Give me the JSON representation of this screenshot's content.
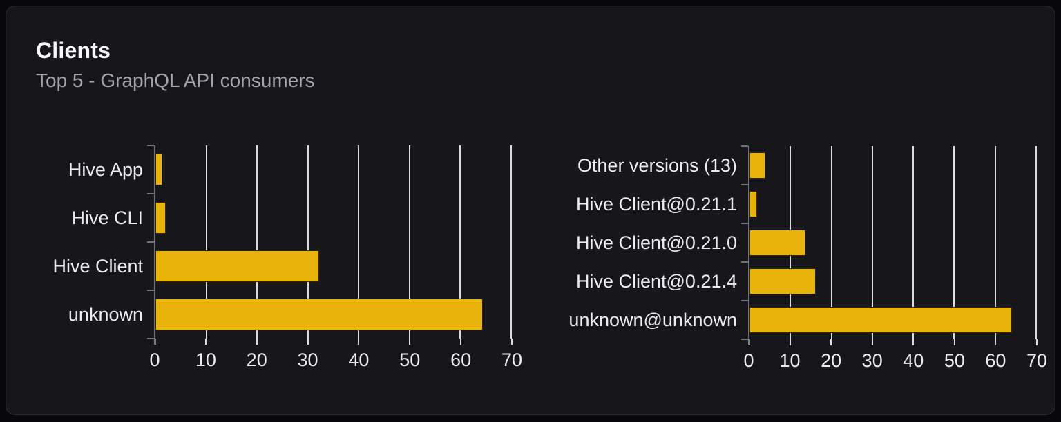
{
  "card": {
    "title": "Clients",
    "subtitle": "Top 5 - GraphQL API consumers"
  },
  "colors": {
    "page_bg": "#08080a",
    "card_bg": "#17171b",
    "card_border": "#2c2c33",
    "bar_fill": "#e8b30b",
    "bar_border": "#2a2310",
    "gridline": "#d9dde3",
    "axis": "#71717a",
    "label_text": "#ececee",
    "title_text": "#fafafa",
    "subtitle_text": "#a3a3ad"
  },
  "chart_data": [
    {
      "type": "bar",
      "orientation": "horizontal",
      "title": "",
      "categories": [
        "Hive App",
        "Hive CLI",
        "Hive Client",
        "unknown"
      ],
      "values": [
        1.4,
        2.0,
        32.2,
        64.4
      ],
      "xlabel": "",
      "ylabel": "",
      "xlim": [
        0,
        70
      ],
      "xticks": [
        0,
        10,
        20,
        30,
        40,
        50,
        60,
        70
      ],
      "grid": true,
      "legend": false
    },
    {
      "type": "bar",
      "orientation": "horizontal",
      "title": "",
      "categories": [
        "Other versions (13)",
        "Hive Client@0.21.1",
        "Hive Client@0.21.0",
        "Hive Client@0.21.4",
        "unknown@unknown"
      ],
      "values": [
        3.8,
        1.8,
        13.7,
        16.2,
        64.1
      ],
      "xlabel": "",
      "ylabel": "",
      "xlim": [
        0,
        70
      ],
      "xticks": [
        0,
        10,
        20,
        30,
        40,
        50,
        60,
        70
      ],
      "grid": true,
      "legend": false
    }
  ]
}
